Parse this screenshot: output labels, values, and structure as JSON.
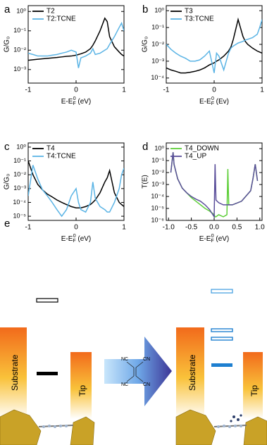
{
  "chart_data": [
    {
      "type": "line",
      "label": "a",
      "log_y": true,
      "grid": false,
      "legend": "upper left",
      "ylabel": "G/G₀",
      "xlabel": [
        "E-E",
        "F",
        "0",
        " (eV)"
      ],
      "xlim": [
        -1,
        1
      ],
      "xticks": [
        -1,
        0,
        1
      ],
      "ylim": [
        0.0002,
        2
      ],
      "yticks": [
        {
          "value": 1,
          "label": "10⁰"
        },
        {
          "value": 0.1,
          "label": "10⁻¹"
        },
        {
          "value": 0.01,
          "label": "10⁻²"
        },
        {
          "value": 0.001,
          "label": "10⁻³"
        }
      ],
      "x": [
        -1,
        -0.9,
        -0.8,
        -0.7,
        -0.6,
        -0.5,
        -0.4,
        -0.3,
        -0.2,
        -0.1,
        0,
        0.05,
        0.1,
        0.2,
        0.3,
        0.35,
        0.4,
        0.5,
        0.6,
        0.65,
        0.7,
        0.8,
        0.9,
        0.95,
        1
      ],
      "series": [
        {
          "name": "T2",
          "color": "#000000",
          "values": [
            0.003,
            0.0032,
            0.0034,
            0.0036,
            0.0038,
            0.004,
            0.0042,
            0.0045,
            0.0048,
            0.005,
            0.0055,
            0.006,
            0.0065,
            0.008,
            0.012,
            0.018,
            0.03,
            0.1,
            0.45,
            0.3,
            0.05,
            0.015,
            0.008,
            0.006,
            0.005
          ]
        },
        {
          "name": "T2:TCNE",
          "color": "#5bb4e5",
          "values": [
            0.007,
            0.006,
            0.005,
            0.005,
            0.005,
            0.0055,
            0.006,
            0.007,
            0.008,
            0.01,
            0.008,
            0.0012,
            0.004,
            0.005,
            0.007,
            0.012,
            0.006,
            0.007,
            0.01,
            0.012,
            0.02,
            0.05,
            0.15,
            0.25,
            0.1
          ]
        }
      ]
    },
    {
      "type": "line",
      "label": "b",
      "log_y": true,
      "grid": false,
      "legend": "upper left",
      "ylabel": "G/G₀",
      "xlabel": [
        "E-E",
        "F",
        "0",
        " (Ev)"
      ],
      "xlim": [
        -1,
        1
      ],
      "xticks": [
        -1,
        0,
        1
      ],
      "ylim": [
        5e-05,
        2
      ],
      "yticks": [
        {
          "value": 1,
          "label": "10⁰"
        },
        {
          "value": 0.1,
          "label": "10⁻¹"
        },
        {
          "value": 0.01,
          "label": "10⁻²"
        },
        {
          "value": 0.001,
          "label": "10⁻³"
        },
        {
          "value": 0.0001,
          "label": "10⁻⁴"
        }
      ],
      "x": [
        -1,
        -0.9,
        -0.8,
        -0.7,
        -0.6,
        -0.5,
        -0.4,
        -0.3,
        -0.2,
        -0.1,
        0,
        0.05,
        0.1,
        0.2,
        0.3,
        0.35,
        0.4,
        0.5,
        0.6,
        0.65,
        0.7,
        0.8,
        0.9,
        0.95,
        1
      ],
      "series": [
        {
          "name": "T3",
          "color": "#000000",
          "values": [
            0.0004,
            0.0003,
            0.00025,
            0.0002,
            0.0002,
            0.00022,
            0.00025,
            0.0003,
            0.0004,
            0.0006,
            0.0008,
            0.001,
            0.0012,
            0.002,
            0.004,
            0.007,
            0.02,
            0.3,
            0.03,
            0.015,
            0.01,
            0.006,
            0.004,
            0.0035,
            0.003
          ]
        },
        {
          "name": "T3:TCNE",
          "color": "#5bb4e5",
          "values": [
            0.01,
            0.005,
            0.003,
            0.002,
            0.0015,
            0.001,
            0.001,
            0.0012,
            0.002,
            0.004,
            0.0002,
            0.003,
            0.002,
            0.0003,
            0.003,
            0.006,
            0.008,
            0.012,
            0.015,
            0.018,
            0.02,
            0.025,
            0.04,
            0.1,
            0.3
          ]
        }
      ]
    },
    {
      "type": "line",
      "label": "c",
      "log_y": true,
      "grid": false,
      "legend": "upper left",
      "ylabel": "G/G₀",
      "xlabel": [
        "E-E",
        "F",
        "0",
        " (eV)"
      ],
      "xlim": [
        -1,
        1
      ],
      "xticks": [
        -1,
        0,
        1
      ],
      "ylim": [
        5e-06,
        2
      ],
      "yticks": [
        {
          "value": 1,
          "label": "10⁰"
        },
        {
          "value": 0.1,
          "label": "10⁻¹"
        },
        {
          "value": 0.01,
          "label": "10⁻²"
        },
        {
          "value": 0.001,
          "label": "10⁻³"
        },
        {
          "value": 0.0001,
          "label": "10⁻⁴"
        },
        {
          "value": 1e-05,
          "label": "10⁻⁵"
        }
      ],
      "x": [
        -1,
        -0.9,
        -0.8,
        -0.7,
        -0.6,
        -0.5,
        -0.4,
        -0.3,
        -0.2,
        -0.1,
        0,
        0.05,
        0.1,
        0.2,
        0.3,
        0.35,
        0.4,
        0.5,
        0.6,
        0.65,
        0.7,
        0.8,
        0.9,
        0.95,
        1
      ],
      "series": [
        {
          "name": "T4",
          "color": "#000000",
          "values": [
            0.1,
            0.01,
            0.002,
            0.0008,
            0.0004,
            0.00025,
            0.00015,
            0.0001,
            7e-05,
            5e-05,
            4e-05,
            4e-05,
            4e-05,
            5e-05,
            7e-05,
            0.0001,
            0.00015,
            0.0005,
            0.003,
            0.006,
            0.02,
            0.0005,
            0.0001,
            7e-05,
            5e-05
          ]
        },
        {
          "name": "T4:TCNE",
          "color": "#5bb4e5",
          "values": [
            0.0003,
            0.05,
            0.005,
            0.0008,
            0.0003,
            0.0001,
            3e-05,
            1e-05,
            3e-05,
            0.0003,
            0.001,
            0.0001,
            3e-05,
            2e-05,
            0.0001,
            0.003,
            0.0002,
            5e-05,
            3e-05,
            2e-05,
            2e-05,
            0.0001,
            0.001,
            0.01,
            0.03
          ]
        }
      ]
    },
    {
      "type": "line",
      "label": "d",
      "log_y": true,
      "grid": false,
      "legend": "upper left",
      "ylabel": "T(E)",
      "xlabel": [
        "E-E",
        "F",
        "0",
        " (eV)"
      ],
      "xlim": [
        -1.05,
        1.05
      ],
      "xticks": [
        {
          "value": -1,
          "label": "-1.0"
        },
        {
          "value": -0.5,
          "label": "-0.5"
        },
        {
          "value": 0,
          "label": "0.0"
        },
        {
          "value": 0.5,
          "label": "0.5"
        },
        {
          "value": 1,
          "label": "1.0"
        }
      ],
      "ylim": [
        1e-06,
        3
      ],
      "yticks": [
        {
          "value": 1,
          "label": "10⁰"
        },
        {
          "value": 0.1,
          "label": "10⁻¹"
        },
        {
          "value": 0.01,
          "label": "10⁻²"
        },
        {
          "value": 0.001,
          "label": "10⁻³"
        },
        {
          "value": 0.0001,
          "label": "10⁻⁴"
        },
        {
          "value": 1e-05,
          "label": "10⁻⁵"
        },
        {
          "value": 1e-06,
          "label": "10⁻⁶"
        }
      ],
      "x": [
        -0.95,
        -0.9,
        -0.88,
        -0.8,
        -0.7,
        -0.6,
        -0.5,
        -0.4,
        -0.3,
        -0.2,
        -0.1,
        0,
        0.02,
        0.04,
        0.1,
        0.2,
        0.28,
        0.3,
        0.32,
        0.4,
        0.6,
        0.8,
        0.85,
        0.9,
        0.95
      ],
      "series": [
        {
          "name": "T4_DOWN",
          "color": "#5fcf3a",
          "values": [
            0.01,
            0.5,
            0.05,
            0.003,
            0.0005,
            0.0002,
            8e-05,
            4e-05,
            2e-05,
            1e-05,
            6e-06,
            3e-06,
            2e-06,
            2e-06,
            3e-06,
            2e-06,
            3e-06,
            0.02,
            2e-05,
            2e-05,
            4e-05,
            0.0003,
            0.003,
            0.05,
            0.002
          ]
        },
        {
          "name": "T4_UP",
          "color": "#5a4e9a",
          "values": [
            0.01,
            0.5,
            0.05,
            0.003,
            0.0005,
            0.0002,
            0.0001,
            6e-05,
            4e-05,
            2e-05,
            8e-06,
            2e-06,
            0.05,
            5e-05,
            3e-05,
            2e-05,
            2e-05,
            2e-05,
            2e-05,
            2e-05,
            4e-05,
            0.0003,
            0.003,
            0.05,
            0.002
          ]
        }
      ]
    }
  ],
  "diagram": {
    "label": "e",
    "left": {
      "substrate": "Substrate",
      "tip": "Tip"
    },
    "right": {
      "substrate": "Substrate",
      "tip": "Tip"
    },
    "molecule": [
      "NC",
      "CN",
      "NC",
      "CN"
    ]
  }
}
